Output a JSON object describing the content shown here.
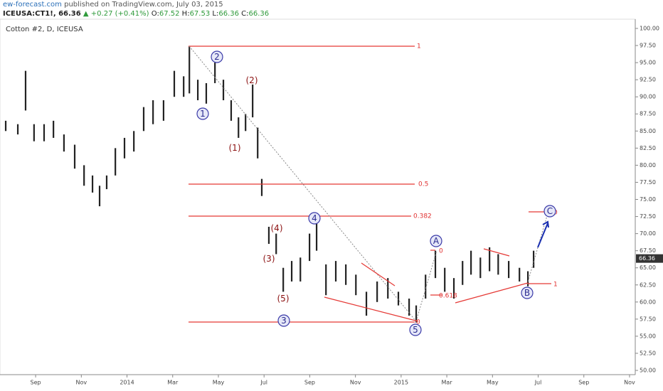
{
  "header": {
    "site": "ew-forecast.com",
    "published": "published on TradingView.com, July 03, 2015",
    "symbol": "ICEUSA:CT1!, 66.36",
    "change": "▲ +0.27 (+0.41%)",
    "ohlc": [
      {
        "label": "O:",
        "value": "67.52"
      },
      {
        "label": "H:",
        "value": "67.53"
      },
      {
        "label": "L:",
        "value": "66.36"
      },
      {
        "label": "C:",
        "value": "66.36"
      }
    ]
  },
  "chart_data": {
    "type": "range",
    "title": "Cotton #2, D, ICEUSA",
    "color": "#222222",
    "grid": false,
    "x": [
      -0.31,
      0.22,
      0.56,
      0.93,
      1.37,
      1.78,
      2.24,
      2.71,
      3.12,
      3.49,
      3.8,
      4.11,
      4.49,
      4.89,
      5.3,
      5.73,
      6.14,
      6.6,
      7.07,
      7.48,
      7.73,
      8.1,
      8.47,
      8.85,
      9.22,
      9.56,
      9.88,
      10.19,
      10.5,
      10.72,
      10.9,
      11.21,
      11.53,
      11.84,
      12.21,
      12.59,
      12.99,
      13.3,
      13.71,
      14.14,
      14.58,
      15.02,
      15.48,
      15.95,
      16.42,
      16.88,
      17.35,
      17.66,
      18.07,
      18.5,
      18.91,
      19.31,
      19.69,
      20.06,
      20.47,
      20.87,
      21.25,
      21.71,
      22.18,
      22.55,
      22.8
    ],
    "high": [
      86.5,
      86,
      93.8,
      86,
      86,
      86.5,
      84.5,
      83,
      80,
      78.5,
      77,
      78.5,
      82.5,
      84,
      85,
      88.5,
      89.5,
      89.5,
      93.8,
      93,
      97.4,
      92.5,
      92,
      95,
      92.5,
      89.5,
      87,
      87.5,
      91.8,
      85.5,
      78,
      71,
      70,
      65,
      66,
      66.5,
      70,
      71.5,
      65.5,
      66,
      65.5,
      64,
      61.5,
      63,
      63.5,
      61.5,
      60.5,
      59.5,
      64,
      67.5,
      65,
      63.5,
      66,
      67.5,
      66.5,
      68,
      67,
      66,
      65,
      64.5,
      67.5
    ],
    "low": [
      85,
      84.5,
      88,
      83.5,
      83.5,
      84,
      82,
      79.5,
      77,
      76,
      74,
      76.5,
      78.5,
      81,
      82,
      85,
      86,
      86.5,
      90,
      90,
      90.5,
      89.5,
      89,
      92,
      89.5,
      86.5,
      84,
      85,
      87,
      81,
      75.5,
      68.5,
      67,
      61.5,
      63,
      63,
      66,
      67.5,
      61,
      63,
      62.5,
      61,
      58,
      60,
      60.5,
      59.5,
      58,
      57,
      60.5,
      63.5,
      61.5,
      60.5,
      62.5,
      64,
      63.5,
      64.5,
      64,
      63.5,
      63,
      62.3,
      65
    ],
    "last_price": 66.36,
    "xlim": [
      -0.56,
      27.25
    ],
    "xticks": [
      {
        "value": 1,
        "label": "Sep"
      },
      {
        "value": 3,
        "label": "Nov"
      },
      {
        "value": 5,
        "label": "2014"
      },
      {
        "value": 7,
        "label": "Mar"
      },
      {
        "value": 9,
        "label": "May"
      },
      {
        "value": 11,
        "label": "Jul"
      },
      {
        "value": 13,
        "label": "Sep"
      },
      {
        "value": 15,
        "label": "Nov"
      },
      {
        "value": 17,
        "label": "2015"
      },
      {
        "value": 19,
        "label": "Mar"
      },
      {
        "value": 21,
        "label": "May"
      },
      {
        "value": 23,
        "label": "Jul"
      },
      {
        "value": 25,
        "label": "Sep"
      },
      {
        "value": 27,
        "label": "Nov"
      }
    ],
    "ylim": [
      49.38,
      101.35
    ],
    "yticks": [
      {
        "value": 100,
        "label": "100.00"
      },
      {
        "value": 97.5,
        "label": "97.50"
      },
      {
        "value": 95,
        "label": "95.00"
      },
      {
        "value": 92.5,
        "label": "92.50"
      },
      {
        "value": 90,
        "label": "90.00"
      },
      {
        "value": 87.5,
        "label": "87.50"
      },
      {
        "value": 85,
        "label": "85.00"
      },
      {
        "value": 82.5,
        "label": "82.50"
      },
      {
        "value": 80,
        "label": "80.00"
      },
      {
        "value": 77.5,
        "label": "77.50"
      },
      {
        "value": 75,
        "label": "75.00"
      },
      {
        "value": 72.5,
        "label": "72.50"
      },
      {
        "value": 70,
        "label": "70.00"
      },
      {
        "value": 67.5,
        "label": "67.50"
      },
      {
        "value": 65,
        "label": "65.00"
      },
      {
        "value": 62.5,
        "label": "62.50"
      },
      {
        "value": 60,
        "label": "60.00"
      },
      {
        "value": 57.5,
        "label": "57.50"
      },
      {
        "value": 55,
        "label": "55.00"
      },
      {
        "value": 52.5,
        "label": "52.50"
      },
      {
        "value": 50,
        "label": "50.00"
      }
    ],
    "annotations": {
      "fib": [
        "1",
        "0.5",
        "0.382",
        "0",
        "0",
        "0.618",
        "1",
        "0"
      ],
      "waves": [
        "1",
        "2",
        "3",
        "4",
        "5",
        "A",
        "B",
        "C"
      ],
      "subwaves": [
        "(1)",
        "(2)",
        "(3)",
        "(4)",
        "(5)"
      ]
    }
  }
}
